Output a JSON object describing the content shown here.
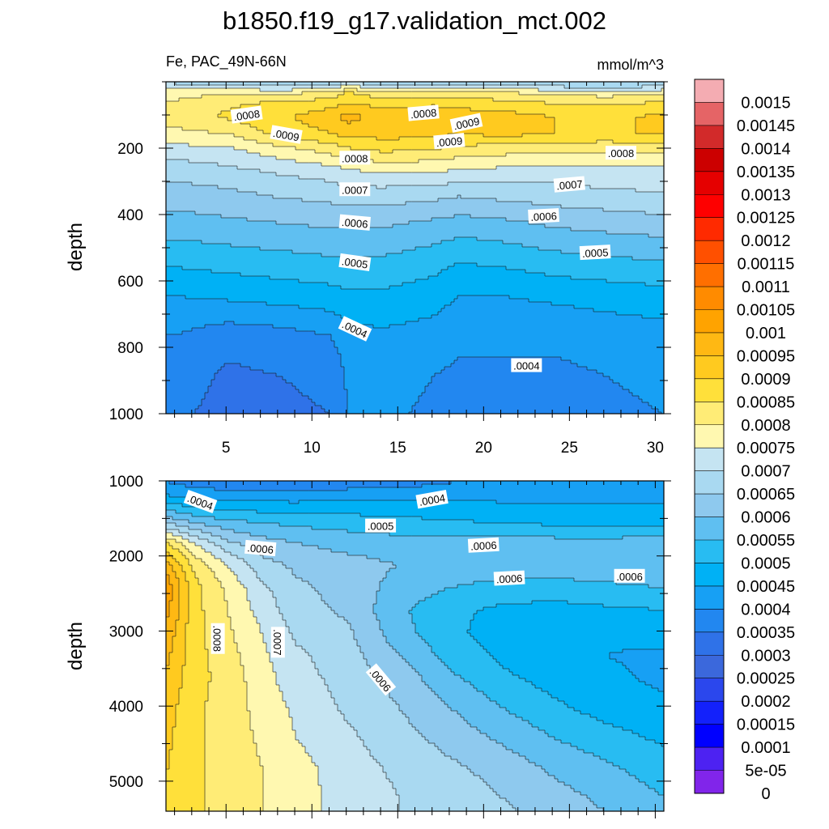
{
  "chart_data": {
    "type": "heatmap",
    "title": "b1850.f19_g17.validation_mct.002",
    "variable_label": "Fe, PAC_49N-66N",
    "units": "mmol/m^3",
    "upper_panel": {
      "ylabel": "depth",
      "x_ticks": [
        "5",
        "10",
        "15",
        "20",
        "25",
        "30"
      ],
      "y_ticks": [
        "200",
        "400",
        "600",
        "800",
        "1000"
      ],
      "x_range": [
        1.5,
        30.5
      ],
      "y_range": [
        0,
        1000
      ],
      "columns": [
        2,
        5,
        8,
        11,
        12,
        14,
        17,
        18.5,
        21,
        24,
        27,
        30.5
      ],
      "depth_profile": [
        0,
        30,
        60,
        100,
        150,
        200,
        260,
        330,
        420,
        520,
        640,
        760,
        880,
        1000
      ],
      "fe_values_by_depth": [
        [
          0.0007,
          0.00068,
          0.00066,
          0.00067,
          0.00072,
          0.00068,
          0.00066,
          0.00067,
          0.00067,
          0.00066,
          0.00065,
          0.00066
        ],
        [
          0.00078,
          0.0008,
          0.00079,
          0.00082,
          0.00086,
          0.00082,
          0.00082,
          0.00082,
          0.00081,
          0.00079,
          0.00078,
          0.0008
        ],
        [
          0.00081,
          0.00084,
          0.00086,
          0.00088,
          0.0009,
          0.00088,
          0.00089,
          0.00088,
          0.00087,
          0.00085,
          0.00084,
          0.00086
        ],
        [
          0.00082,
          0.00086,
          0.00089,
          0.00093,
          0.00097,
          0.00093,
          0.00094,
          0.00093,
          0.00092,
          0.0009,
          0.00089,
          0.00091
        ],
        [
          0.00079,
          0.0008,
          0.00087,
          0.0009,
          0.00092,
          0.00092,
          0.00092,
          0.0009,
          0.00092,
          0.0009,
          0.00089,
          0.00091
        ],
        [
          0.00073,
          0.00074,
          0.00078,
          0.00082,
          0.00084,
          0.00086,
          0.00085,
          0.00083,
          0.00082,
          0.00081,
          0.00081,
          0.00081
        ],
        [
          0.00067,
          0.00069,
          0.00071,
          0.00073,
          0.00075,
          0.00076,
          0.00076,
          0.00075,
          0.00074,
          0.00073,
          0.00074,
          0.00074
        ],
        [
          0.00063,
          0.00064,
          0.00066,
          0.00067,
          0.00068,
          0.00068,
          0.00067,
          0.00066,
          0.00067,
          0.00068,
          0.00069,
          0.0007
        ],
        [
          0.00058,
          0.00059,
          0.0006,
          0.00061,
          0.00061,
          0.00061,
          0.00059,
          0.00058,
          0.00059,
          0.00061,
          0.00062,
          0.00063
        ],
        [
          0.00052,
          0.00053,
          0.00054,
          0.00055,
          0.00055,
          0.00055,
          0.00053,
          0.00051,
          0.00052,
          0.00054,
          0.00055,
          0.00056
        ],
        [
          0.00045,
          0.00046,
          0.00047,
          0.00048,
          0.00049,
          0.00049,
          0.00047,
          0.00045,
          0.00045,
          0.00046,
          0.00047,
          0.00048
        ],
        [
          0.0004,
          0.00037,
          0.00038,
          0.0004,
          0.00043,
          0.00044,
          0.00043,
          0.00041,
          0.00041,
          0.00041,
          0.00042,
          0.00043
        ],
        [
          0.00038,
          0.00034,
          0.00035,
          0.00036,
          0.00041,
          0.00042,
          0.0004,
          0.00039,
          0.00039,
          0.00039,
          0.0004,
          0.00041
        ],
        [
          0.00036,
          0.00033,
          0.00034,
          0.00035,
          0.0004,
          0.00041,
          0.00039,
          0.00038,
          0.00038,
          0.00038,
          0.00039,
          0.0004
        ]
      ],
      "contour_labels": [
        {
          "text": ".0008",
          "x": 6.2,
          "y": 100,
          "angle": -8
        },
        {
          "text": ".0008",
          "x": 16.5,
          "y": 95,
          "angle": -5
        },
        {
          "text": ".0009",
          "x": 19.0,
          "y": 125,
          "angle": -12
        },
        {
          "text": ".0009",
          "x": 8.5,
          "y": 160,
          "angle": 10
        },
        {
          "text": ".0008",
          "x": 12.5,
          "y": 230,
          "angle": 0
        },
        {
          "text": ".0009",
          "x": 18.0,
          "y": 180,
          "angle": -5
        },
        {
          "text": ".0008",
          "x": 28.0,
          "y": 215,
          "angle": 0
        },
        {
          "text": ".0007",
          "x": 12.5,
          "y": 325,
          "angle": 0
        },
        {
          "text": ".0007",
          "x": 25.0,
          "y": 310,
          "angle": -5
        },
        {
          "text": ".0006",
          "x": 12.5,
          "y": 425,
          "angle": 5
        },
        {
          "text": ".0006",
          "x": 23.5,
          "y": 405,
          "angle": -3
        },
        {
          "text": ".0005",
          "x": 12.5,
          "y": 545,
          "angle": 8
        },
        {
          "text": ".0005",
          "x": 26.5,
          "y": 515,
          "angle": -3
        },
        {
          "text": ".0004",
          "x": 12.5,
          "y": 745,
          "angle": 25
        },
        {
          "text": ".0004",
          "x": 22.5,
          "y": 855,
          "angle": 0
        }
      ]
    },
    "lower_panel": {
      "ylabel": "depth",
      "y_ticks": [
        "1000",
        "2000",
        "3000",
        "4000",
        "5000"
      ],
      "x_range": [
        1.5,
        30.5
      ],
      "y_range": [
        1000,
        5400
      ],
      "columns": [
        1.5,
        3,
        5,
        7,
        9,
        12,
        15,
        18,
        21,
        24,
        27,
        30.5
      ],
      "depth_profile": [
        1000,
        1200,
        1500,
        1800,
        2100,
        2400,
        2700,
        3000,
        3300,
        3600,
        4000,
        4400,
        4800,
        5200,
        5400
      ],
      "fe_values_by_depth": [
        [
          0.0004,
          0.00038,
          0.00037,
          0.00036,
          0.00036,
          0.00037,
          0.00038,
          0.0004,
          0.00041,
          0.00041,
          0.00042,
          0.00042
        ],
        [
          0.00046,
          0.00044,
          0.00043,
          0.00043,
          0.00043,
          0.00044,
          0.00044,
          0.00044,
          0.00044,
          0.00044,
          0.00044,
          0.00044
        ],
        [
          0.00062,
          0.00058,
          0.00055,
          0.00054,
          0.00053,
          0.00052,
          0.00051,
          0.0005,
          0.00049,
          0.00048,
          0.00047,
          0.00047
        ],
        [
          0.00085,
          0.00075,
          0.00066,
          0.00062,
          0.0006,
          0.00058,
          0.00057,
          0.00057,
          0.00057,
          0.00057,
          0.00057,
          0.00058
        ],
        [
          0.00097,
          0.00084,
          0.00075,
          0.00067,
          0.00064,
          0.00062,
          0.0006,
          0.00059,
          0.00058,
          0.00058,
          0.00058,
          0.00059
        ],
        [
          0.00103,
          0.00087,
          0.00079,
          0.00071,
          0.00066,
          0.00063,
          0.00058,
          0.00055,
          0.00053,
          0.00053,
          0.00054,
          0.00055
        ],
        [
          0.00101,
          0.00087,
          0.0008,
          0.00073,
          0.00067,
          0.00064,
          0.00056,
          0.00051,
          0.00049,
          0.00048,
          0.00049,
          0.0005
        ],
        [
          0.00098,
          0.00087,
          0.00081,
          0.00075,
          0.00069,
          0.00066,
          0.00057,
          0.00051,
          0.00048,
          0.00047,
          0.00046,
          0.00047
        ],
        [
          0.00096,
          0.00087,
          0.00082,
          0.00076,
          0.00071,
          0.00067,
          0.0006,
          0.00053,
          0.00049,
          0.00047,
          0.00045,
          0.00044
        ],
        [
          0.00094,
          0.00087,
          0.00083,
          0.00077,
          0.00072,
          0.00068,
          0.00063,
          0.00056,
          0.00051,
          0.00048,
          0.00046,
          0.00044
        ],
        [
          0.00092,
          0.00086,
          0.00083,
          0.00078,
          0.00074,
          0.00069,
          0.00065,
          0.0006,
          0.00055,
          0.00051,
          0.00048,
          0.00046
        ],
        [
          0.00091,
          0.00086,
          0.00083,
          0.00079,
          0.00075,
          0.00071,
          0.00067,
          0.00063,
          0.00059,
          0.00055,
          0.00052,
          0.00049
        ],
        [
          0.0009,
          0.00086,
          0.00083,
          0.0008,
          0.00077,
          0.00072,
          0.00069,
          0.00066,
          0.00063,
          0.00059,
          0.00056,
          0.00052
        ],
        [
          0.00089,
          0.00086,
          0.00083,
          0.0008,
          0.00077,
          0.00073,
          0.0007,
          0.00068,
          0.00065,
          0.00062,
          0.00059,
          0.00055
        ],
        [
          0.00089,
          0.00086,
          0.00083,
          0.0008,
          0.00077,
          0.00073,
          0.0007,
          0.00068,
          0.00066,
          0.00063,
          0.0006,
          0.00056
        ]
      ],
      "contour_labels": [
        {
          "text": ".0004",
          "x": 3.5,
          "y": 1280,
          "angle": 20
        },
        {
          "text": ".0004",
          "x": 17.0,
          "y": 1250,
          "angle": -10
        },
        {
          "text": ".0005",
          "x": 14.0,
          "y": 1600,
          "angle": 0
        },
        {
          "text": ".0006",
          "x": 7.0,
          "y": 1900,
          "angle": 5
        },
        {
          "text": ".0006",
          "x": 20.0,
          "y": 1860,
          "angle": -3
        },
        {
          "text": ".0006",
          "x": 21.5,
          "y": 2300,
          "angle": -3
        },
        {
          "text": ".0006",
          "x": 28.5,
          "y": 2270,
          "angle": 0
        },
        {
          "text": ".0008",
          "x": 4.5,
          "y": 3100,
          "angle": 90
        },
        {
          "text": ".0007",
          "x": 8.0,
          "y": 3150,
          "angle": 90
        },
        {
          "text": ".0006",
          "x": 14.0,
          "y": 3650,
          "angle": 50
        }
      ]
    },
    "colorbar": {
      "levels": [
        "0.0015",
        "0.00145",
        "0.0014",
        "0.00135",
        "0.0013",
        "0.00125",
        "0.0012",
        "0.00115",
        "0.0011",
        "0.00105",
        "0.001",
        "0.00095",
        "0.0009",
        "0.00085",
        "0.0008",
        "0.00075",
        "0.0007",
        "0.00065",
        "0.0006",
        "0.00055",
        "0.0005",
        "0.00045",
        "0.0004",
        "0.00035",
        "0.0003",
        "0.00025",
        "0.0002",
        "0.00015",
        "0.0001",
        "5e-05",
        "0"
      ],
      "colors": [
        "#f4acb2",
        "#e56466",
        "#d22a2a",
        "#cc0000",
        "#e50000",
        "#fe0000",
        "#ff2a00",
        "#ff5000",
        "#ff6f00",
        "#ff8b00",
        "#ffa300",
        "#ffb813",
        "#ffca1f",
        "#ffe03a",
        "#ffec76",
        "#fff8b0",
        "#c5e4f2",
        "#a9d9f1",
        "#8ec9ee",
        "#5fbff1",
        "#28bcf2",
        "#00b1f5",
        "#17a0f4",
        "#2287f0",
        "#2f72e8",
        "#3b68dc",
        "#2b47ed",
        "#1321fb",
        "#0000ff",
        "#4d22f2",
        "#8125ea"
      ]
    }
  }
}
